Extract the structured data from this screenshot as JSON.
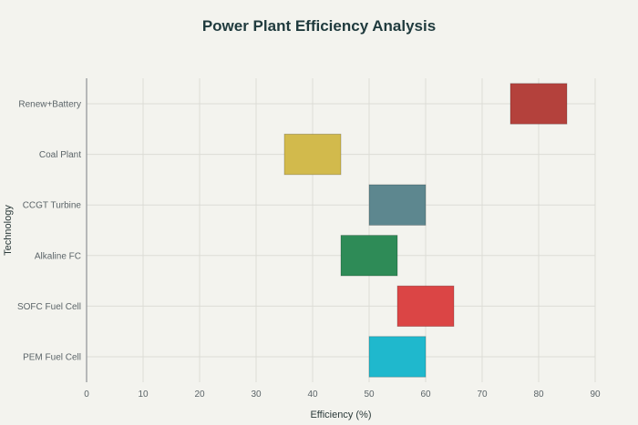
{
  "chart_data": {
    "type": "bar",
    "orientation": "horizontal-range",
    "title": "Power Plant Efficiency Analysis",
    "xlabel": "Efficiency (%)",
    "ylabel": "Technology",
    "xlim": [
      0,
      90
    ],
    "xticks": [
      0,
      10,
      20,
      30,
      40,
      50,
      60,
      70,
      80,
      90
    ],
    "grid": true,
    "legend": "none",
    "categories": [
      "PEM Fuel Cell",
      "SOFC Fuel Cell",
      "Alkaline FC",
      "CCGT Turbine",
      "Coal Plant",
      "Renew+Battery"
    ],
    "ranges": [
      {
        "min": 50,
        "max": 60,
        "color": "#1fb8cd"
      },
      {
        "min": 55,
        "max": 65,
        "color": "#db4545"
      },
      {
        "min": 45,
        "max": 55,
        "color": "#2e8b57"
      },
      {
        "min": 50,
        "max": 60,
        "color": "#5d878f"
      },
      {
        "min": 35,
        "max": 45,
        "color": "#d2ba4c"
      },
      {
        "min": 75,
        "max": 85,
        "color": "#b4413c"
      }
    ]
  }
}
